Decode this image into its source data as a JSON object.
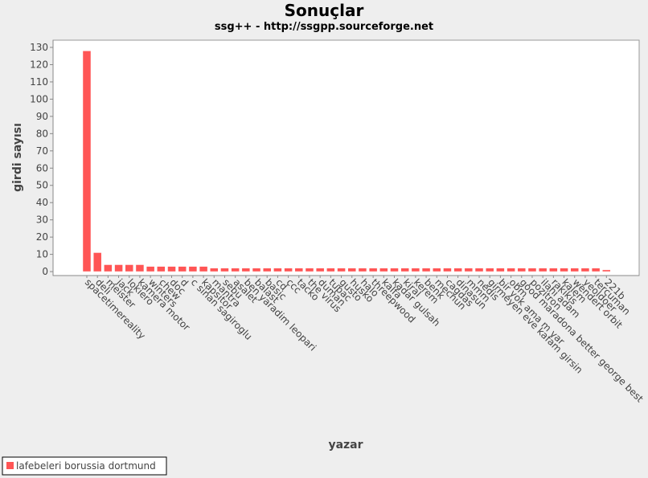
{
  "chart_data": {
    "type": "bar",
    "title": "Sonuçlar",
    "subtitle": "ssg++ - http://ssgpp.sourceforge.net",
    "x_label": "yazar",
    "y_label": "girdi sayısı",
    "categories": [
      "spacetimereality",
      "deli",
      "meister",
      "jack",
      "lokiero",
      "kamera motor",
      "winters",
      "chew",
      "doc",
      "d",
      "c sinan sagiroglu",
      "kapsitor",
      "mantra",
      "sebu",
      "asalet",
      "ben yaradim leopari",
      "balast",
      "basic",
      "cd",
      "ccc",
      "tacko",
      "the virus",
      "duman",
      "tupac",
      "gusto",
      "husko",
      "halo",
      "threepwood",
      "kalfa",
      "kadar gulsah",
      "kiral",
      "kerem",
      "benk",
      "mecnun",
      "cagdas",
      "dinasun",
      "mmm",
      "nedis",
      "girmeyen eve kafam girsin",
      "bir yok ama m var",
      "obm",
      "good maradona better george best",
      "pozitron",
      "ilahi adam",
      "rakikis",
      "kalem",
      "wendert orbit",
      "yeoldoer",
      "tercuman",
      "221b"
    ],
    "series": [
      {
        "name": "lafebeleri borussia dortmund",
        "color": "#ff5555",
        "values": [
          128,
          11,
          4,
          4,
          4,
          4,
          3,
          3,
          3,
          3,
          3,
          3,
          2,
          2,
          2,
          2,
          2,
          2,
          2,
          2,
          2,
          2,
          2,
          2,
          2,
          2,
          2,
          2,
          2,
          2,
          2,
          2,
          2,
          2,
          2,
          2,
          2,
          2,
          2,
          2,
          2,
          2,
          2,
          2,
          2,
          2,
          2,
          2,
          2,
          1
        ]
      }
    ],
    "ylim": [
      -2.3,
      134.2
    ],
    "yticks": [
      0,
      10,
      20,
      30,
      40,
      50,
      60,
      70,
      80,
      90,
      100,
      110,
      120,
      130
    ],
    "grid": false,
    "legend": "bottom-left"
  }
}
